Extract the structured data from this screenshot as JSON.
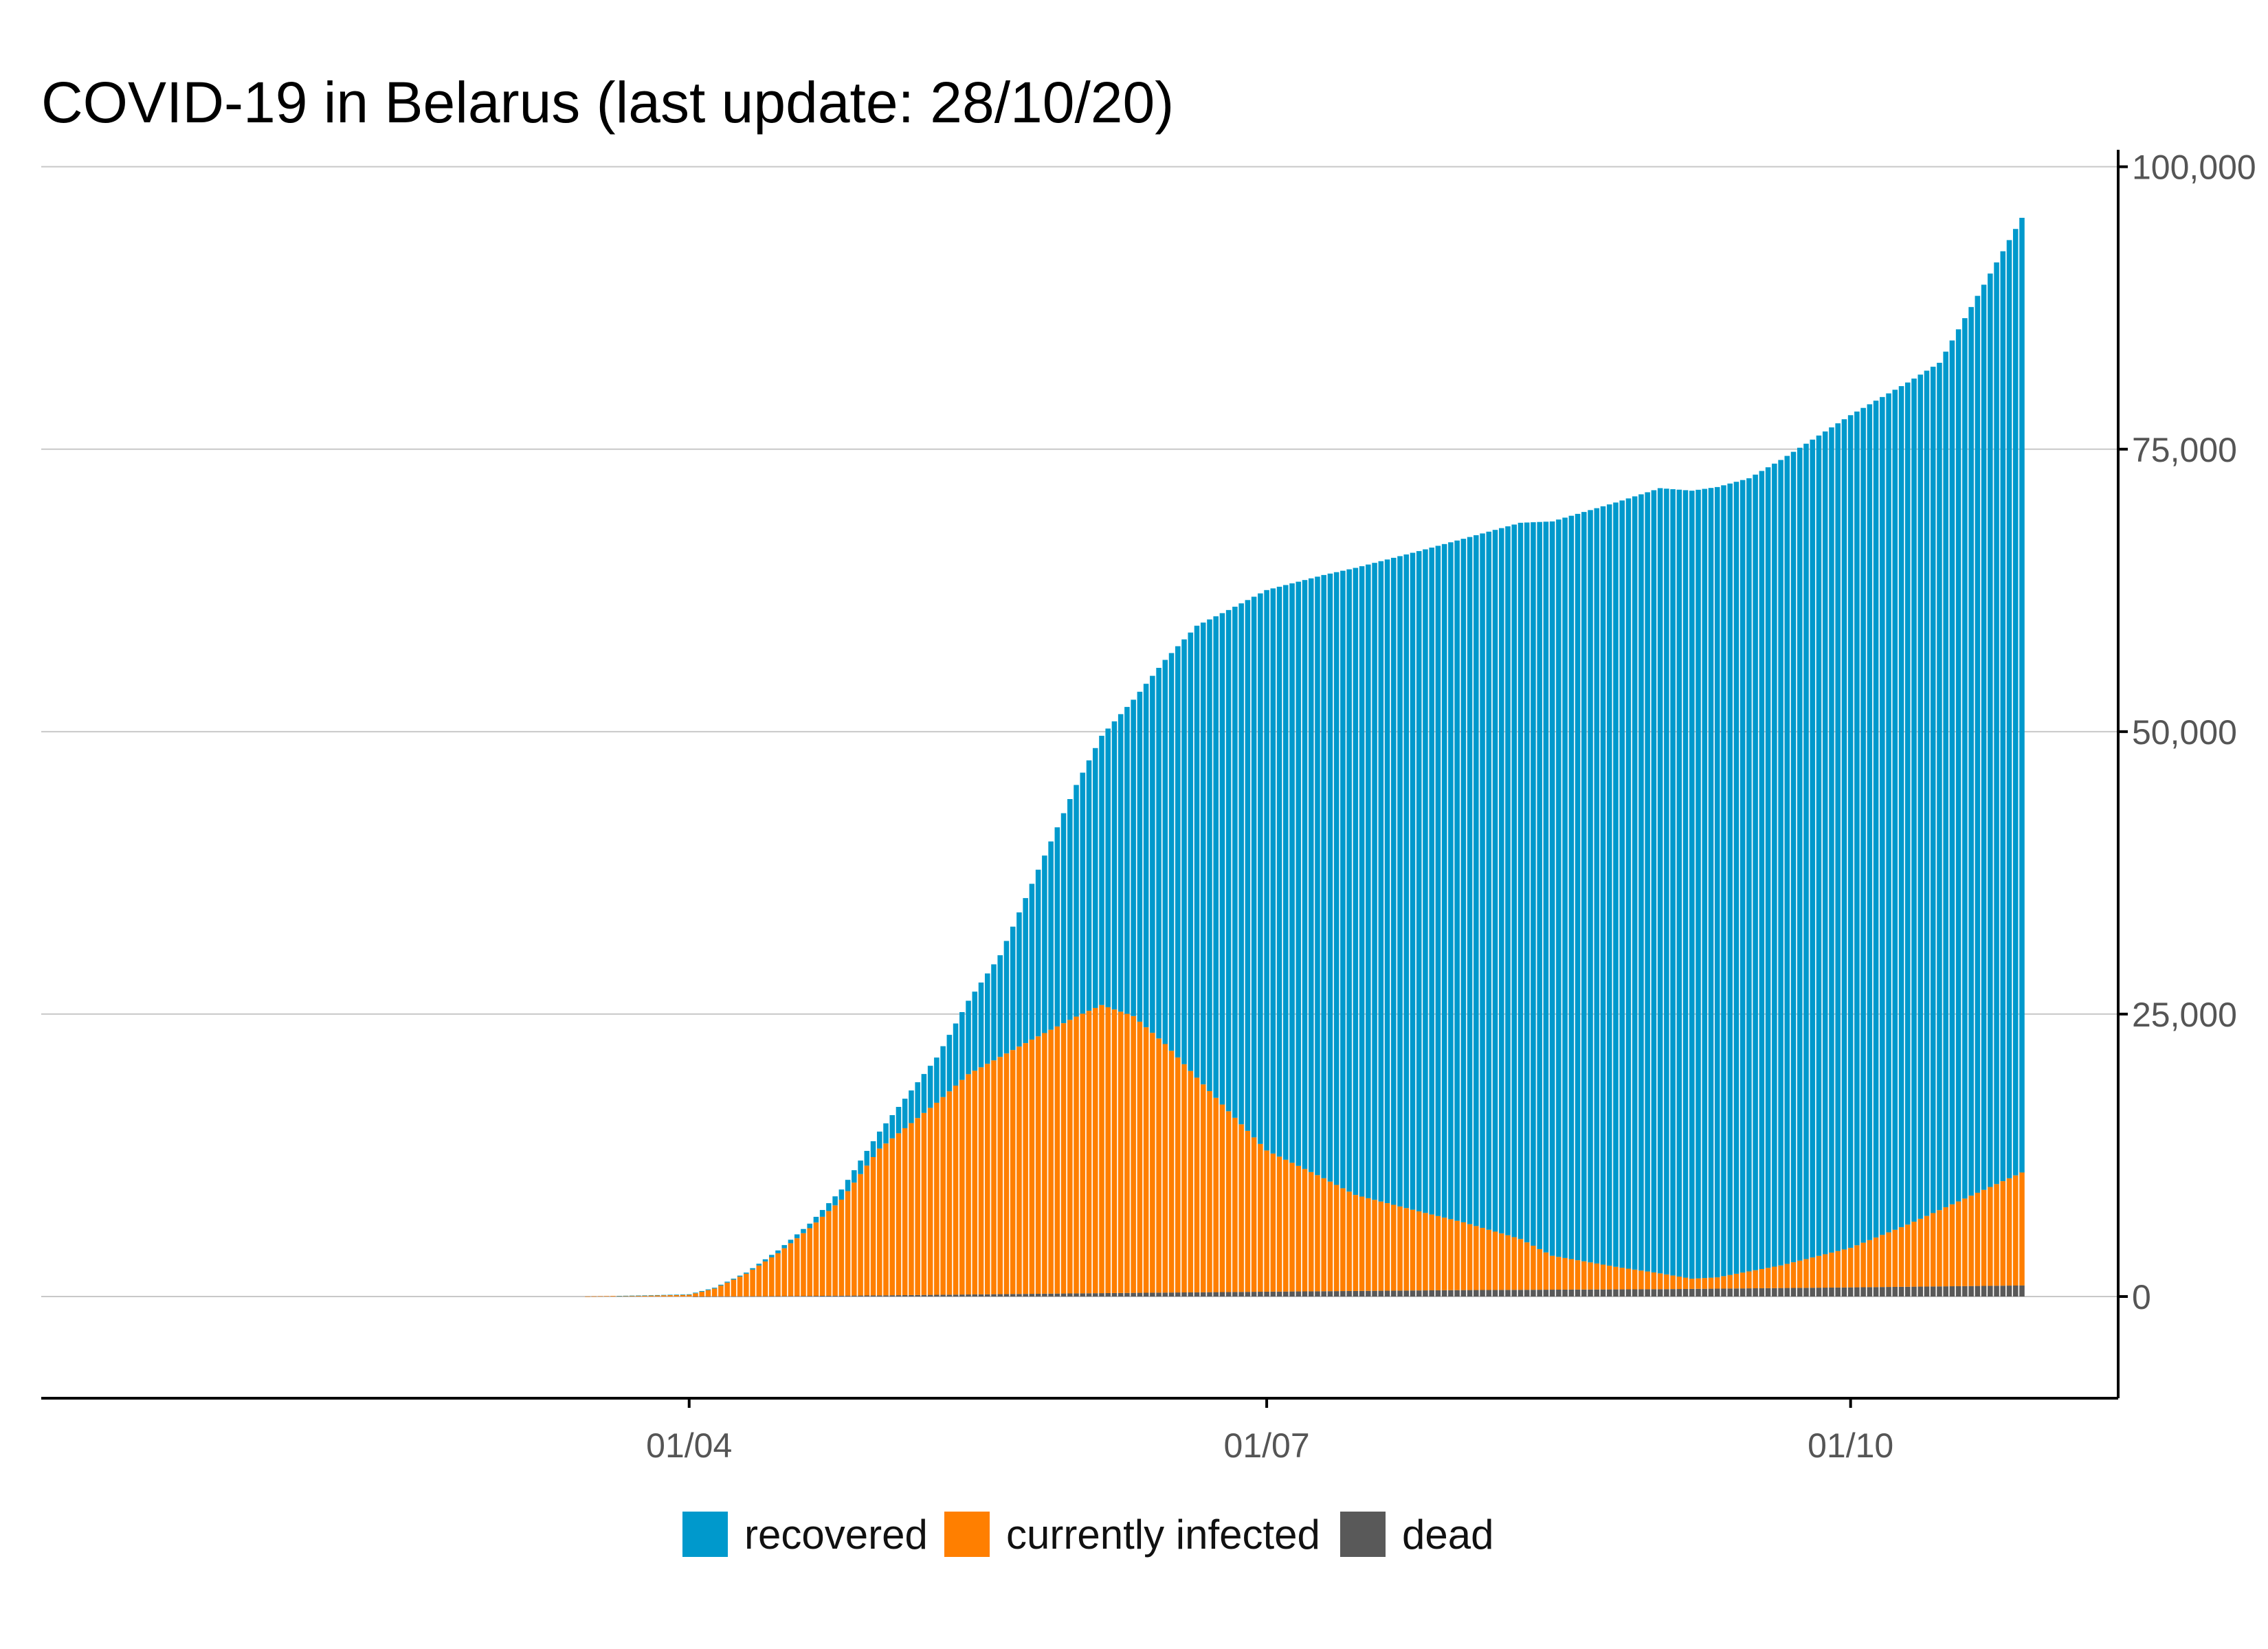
{
  "chart_data": {
    "type": "bar",
    "stacked": true,
    "title": "COVID-19 in Belarus (last update: 28/10/20)",
    "xlabel": "",
    "ylabel": "",
    "ylim": [
      -9000,
      101500
    ],
    "yticks": [
      0,
      25000,
      50000,
      75000,
      100000
    ],
    "ytick_labels": [
      "0",
      "25,000",
      "50,000",
      "75,000",
      "100,000"
    ],
    "x_start": "2020-02-28",
    "x_end": "2020-10-28",
    "xticks": [
      {
        "date": "2020-04-01",
        "label": "01/04"
      },
      {
        "date": "2020-07-01",
        "label": "01/07"
      },
      {
        "date": "2020-10-01",
        "label": "01/10"
      }
    ],
    "grid": true,
    "legend_position": "bottom",
    "series": [
      {
        "name": "dead",
        "color": "#595959",
        "order": 0,
        "keypoints": [
          [
            "2020-02-28",
            0
          ],
          [
            "2020-04-01",
            0
          ],
          [
            "2020-04-15",
            30
          ],
          [
            "2020-05-01",
            100
          ],
          [
            "2020-06-01",
            280
          ],
          [
            "2020-07-01",
            430
          ],
          [
            "2020-08-01",
            570
          ],
          [
            "2020-09-01",
            650
          ],
          [
            "2020-10-01",
            810
          ],
          [
            "2020-10-28",
            980
          ]
        ]
      },
      {
        "name": "currently infected",
        "color": "#ff7f00",
        "order": 1,
        "keypoints": [
          [
            "2020-02-28",
            0
          ],
          [
            "2020-03-15",
            0
          ],
          [
            "2020-03-20",
            50
          ],
          [
            "2020-03-25",
            80
          ],
          [
            "2020-04-01",
            150
          ],
          [
            "2020-04-05",
            700
          ],
          [
            "2020-04-10",
            2000
          ],
          [
            "2020-04-15",
            3800
          ],
          [
            "2020-04-20",
            6000
          ],
          [
            "2020-04-25",
            8500
          ],
          [
            "2020-05-01",
            13000
          ],
          [
            "2020-05-10",
            17000
          ],
          [
            "2020-05-15",
            19500
          ],
          [
            "2020-05-20",
            21000
          ],
          [
            "2020-05-25",
            22500
          ],
          [
            "2020-06-01",
            24500
          ],
          [
            "2020-06-05",
            25500
          ],
          [
            "2020-06-10",
            24500
          ],
          [
            "2020-06-15",
            22000
          ],
          [
            "2020-06-20",
            19000
          ],
          [
            "2020-06-25",
            16000
          ],
          [
            "2020-07-01",
            12500
          ],
          [
            "2020-07-10",
            10000
          ],
          [
            "2020-07-15",
            8500
          ],
          [
            "2020-07-25",
            7000
          ],
          [
            "2020-08-01",
            6000
          ],
          [
            "2020-08-10",
            4500
          ],
          [
            "2020-08-15",
            3000
          ],
          [
            "2020-08-25",
            2000
          ],
          [
            "2020-09-01",
            1400
          ],
          [
            "2020-09-06",
            900
          ],
          [
            "2020-09-10",
            1000
          ],
          [
            "2020-09-15",
            1500
          ],
          [
            "2020-09-20",
            2000
          ],
          [
            "2020-10-01",
            3500
          ],
          [
            "2020-10-10",
            5500
          ],
          [
            "2020-10-20",
            8000
          ],
          [
            "2020-10-28",
            10000
          ]
        ]
      },
      {
        "name": "recovered",
        "color": "#0099cc",
        "order": 2,
        "keypoints": [
          [
            "2020-02-28",
            0
          ],
          [
            "2020-03-20",
            0
          ],
          [
            "2020-04-01",
            50
          ],
          [
            "2020-04-10",
            100
          ],
          [
            "2020-04-20",
            400
          ],
          [
            "2020-05-01",
            1500
          ],
          [
            "2020-05-10",
            4000
          ],
          [
            "2020-05-20",
            9000
          ],
          [
            "2020-06-01",
            20500
          ],
          [
            "2020-06-10",
            28000
          ],
          [
            "2020-06-20",
            40000
          ],
          [
            "2020-07-01",
            49600
          ],
          [
            "2020-07-15",
            55500
          ],
          [
            "2020-08-01",
            60500
          ],
          [
            "2020-08-15",
            65000
          ],
          [
            "2020-09-01",
            69500
          ],
          [
            "2020-09-15",
            70200
          ],
          [
            "2020-10-01",
            73700
          ],
          [
            "2020-10-15",
            75000
          ],
          [
            "2020-10-28",
            84500
          ]
        ]
      }
    ],
    "legend": [
      {
        "label": "recovered",
        "color": "#0099cc"
      },
      {
        "label": "currently infected",
        "color": "#ff7f00"
      },
      {
        "label": "dead",
        "color": "#595959"
      }
    ]
  }
}
